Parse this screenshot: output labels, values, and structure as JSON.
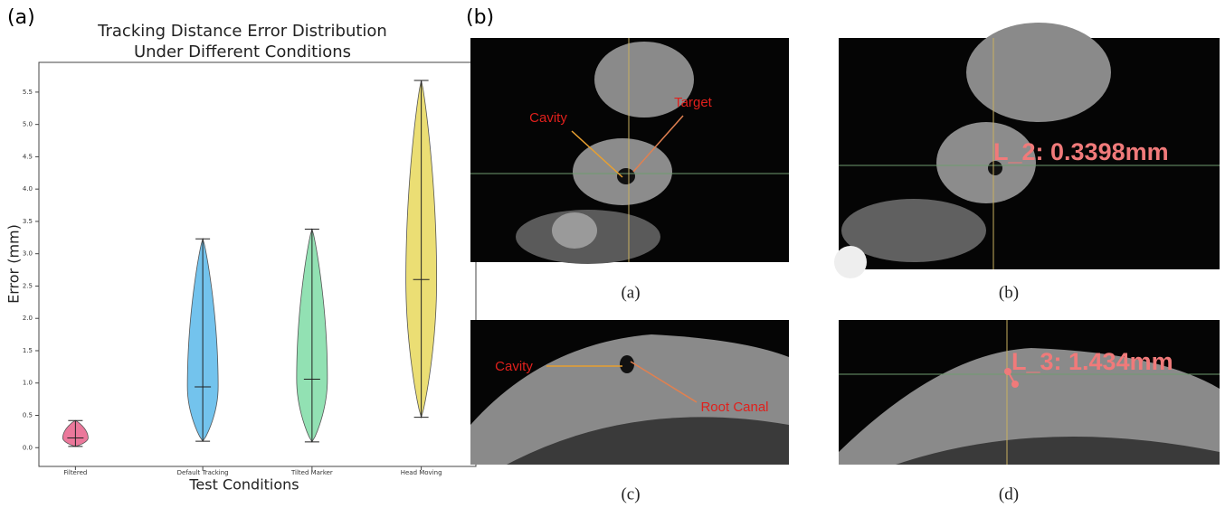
{
  "chart_data": {
    "type": "violin",
    "panel_label": "(a)",
    "title": "Tracking Distance Error Distribution\nUnder Different Conditions",
    "x_label": "Test Conditions",
    "y_label": "Error (mm)",
    "categories": [
      "Filtered",
      "Default Tracking",
      "Tilted Marker",
      "Head Moving"
    ],
    "min": [
      0.02,
      0.1,
      0.09,
      0.47
    ],
    "median": [
      0.15,
      0.94,
      1.06,
      2.6
    ],
    "max": [
      0.42,
      3.23,
      3.38,
      5.68
    ],
    "colors": [
      "#e8608a",
      "#5ab8ea",
      "#7fdca6",
      "#e8d85c"
    ],
    "ylim": [
      -0.29,
      5.96
    ],
    "yticks": [
      {
        "value": 0,
        "label": "0.0"
      },
      {
        "value": 0.5,
        "label": "0.5"
      },
      {
        "value": 1,
        "label": "1.0"
      },
      {
        "value": 1.5,
        "label": "1.5"
      },
      {
        "value": 2,
        "label": "2.0"
      },
      {
        "value": 2.5,
        "label": "2.5"
      },
      {
        "value": 3,
        "label": "3.0"
      },
      {
        "value": 3.5,
        "label": "3.5"
      },
      {
        "value": 4,
        "label": "4.0"
      },
      {
        "value": 4.5,
        "label": "4.5"
      },
      {
        "value": 5,
        "label": "5.0"
      },
      {
        "value": 5.5,
        "label": "5.5"
      }
    ]
  },
  "panel_b": {
    "label": "(b)",
    "images": [
      {
        "caption": "(a)",
        "annotations": [
          "Cavity",
          "Target"
        ]
      },
      {
        "caption": "(b)",
        "annotations": [
          "L_2: 0.3398mm"
        ]
      },
      {
        "caption": "(c)",
        "annotations": [
          "Cavity",
          "Root Canal"
        ]
      },
      {
        "caption": "(d)",
        "annotations": [
          "L_3: 1.434mm"
        ]
      }
    ]
  }
}
